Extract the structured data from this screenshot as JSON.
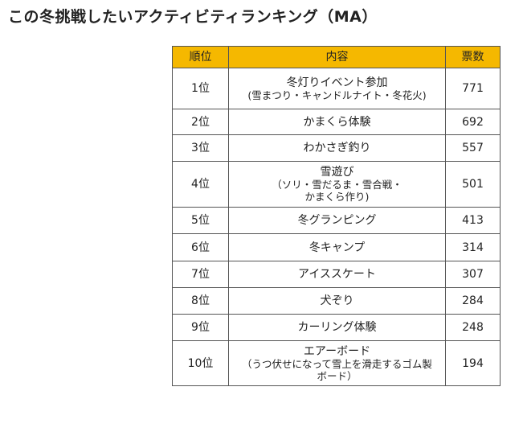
{
  "page": {
    "title": "この冬挑戦したいアクティビティランキング（MA）"
  },
  "table": {
    "headers": [
      "順位",
      "内容",
      "票数"
    ],
    "rows": [
      {
        "rank": "1位",
        "content": "冬灯りイベント参加",
        "sub": [
          "(雪まつり・キャンドルナイト・冬花火)"
        ],
        "votes": "771"
      },
      {
        "rank": "2位",
        "content": "かまくら体験",
        "sub": [],
        "votes": "692"
      },
      {
        "rank": "3位",
        "content": "わかさぎ釣り",
        "sub": [],
        "votes": "557"
      },
      {
        "rank": "4位",
        "content": "雪遊び",
        "sub": [
          "（ソリ・雪だるま・雪合戦・",
          "かまくら作り)"
        ],
        "votes": "501"
      },
      {
        "rank": "5位",
        "content": "冬グランピング",
        "sub": [],
        "votes": "413"
      },
      {
        "rank": "6位",
        "content": "冬キャンプ",
        "sub": [],
        "votes": "314"
      },
      {
        "rank": "7位",
        "content": "アイススケート",
        "sub": [],
        "votes": "307"
      },
      {
        "rank": "8位",
        "content": "犬ぞり",
        "sub": [],
        "votes": "284"
      },
      {
        "rank": "9位",
        "content": "カーリング体験",
        "sub": [],
        "votes": "248"
      },
      {
        "rank": "10位",
        "content": "エアーボード",
        "sub": [
          "（うつ伏せになって雪上を滑走するゴム製",
          "ボード）"
        ],
        "votes": "194"
      }
    ]
  },
  "colors": {
    "header_background": "#f5b800",
    "border": "#555555"
  }
}
